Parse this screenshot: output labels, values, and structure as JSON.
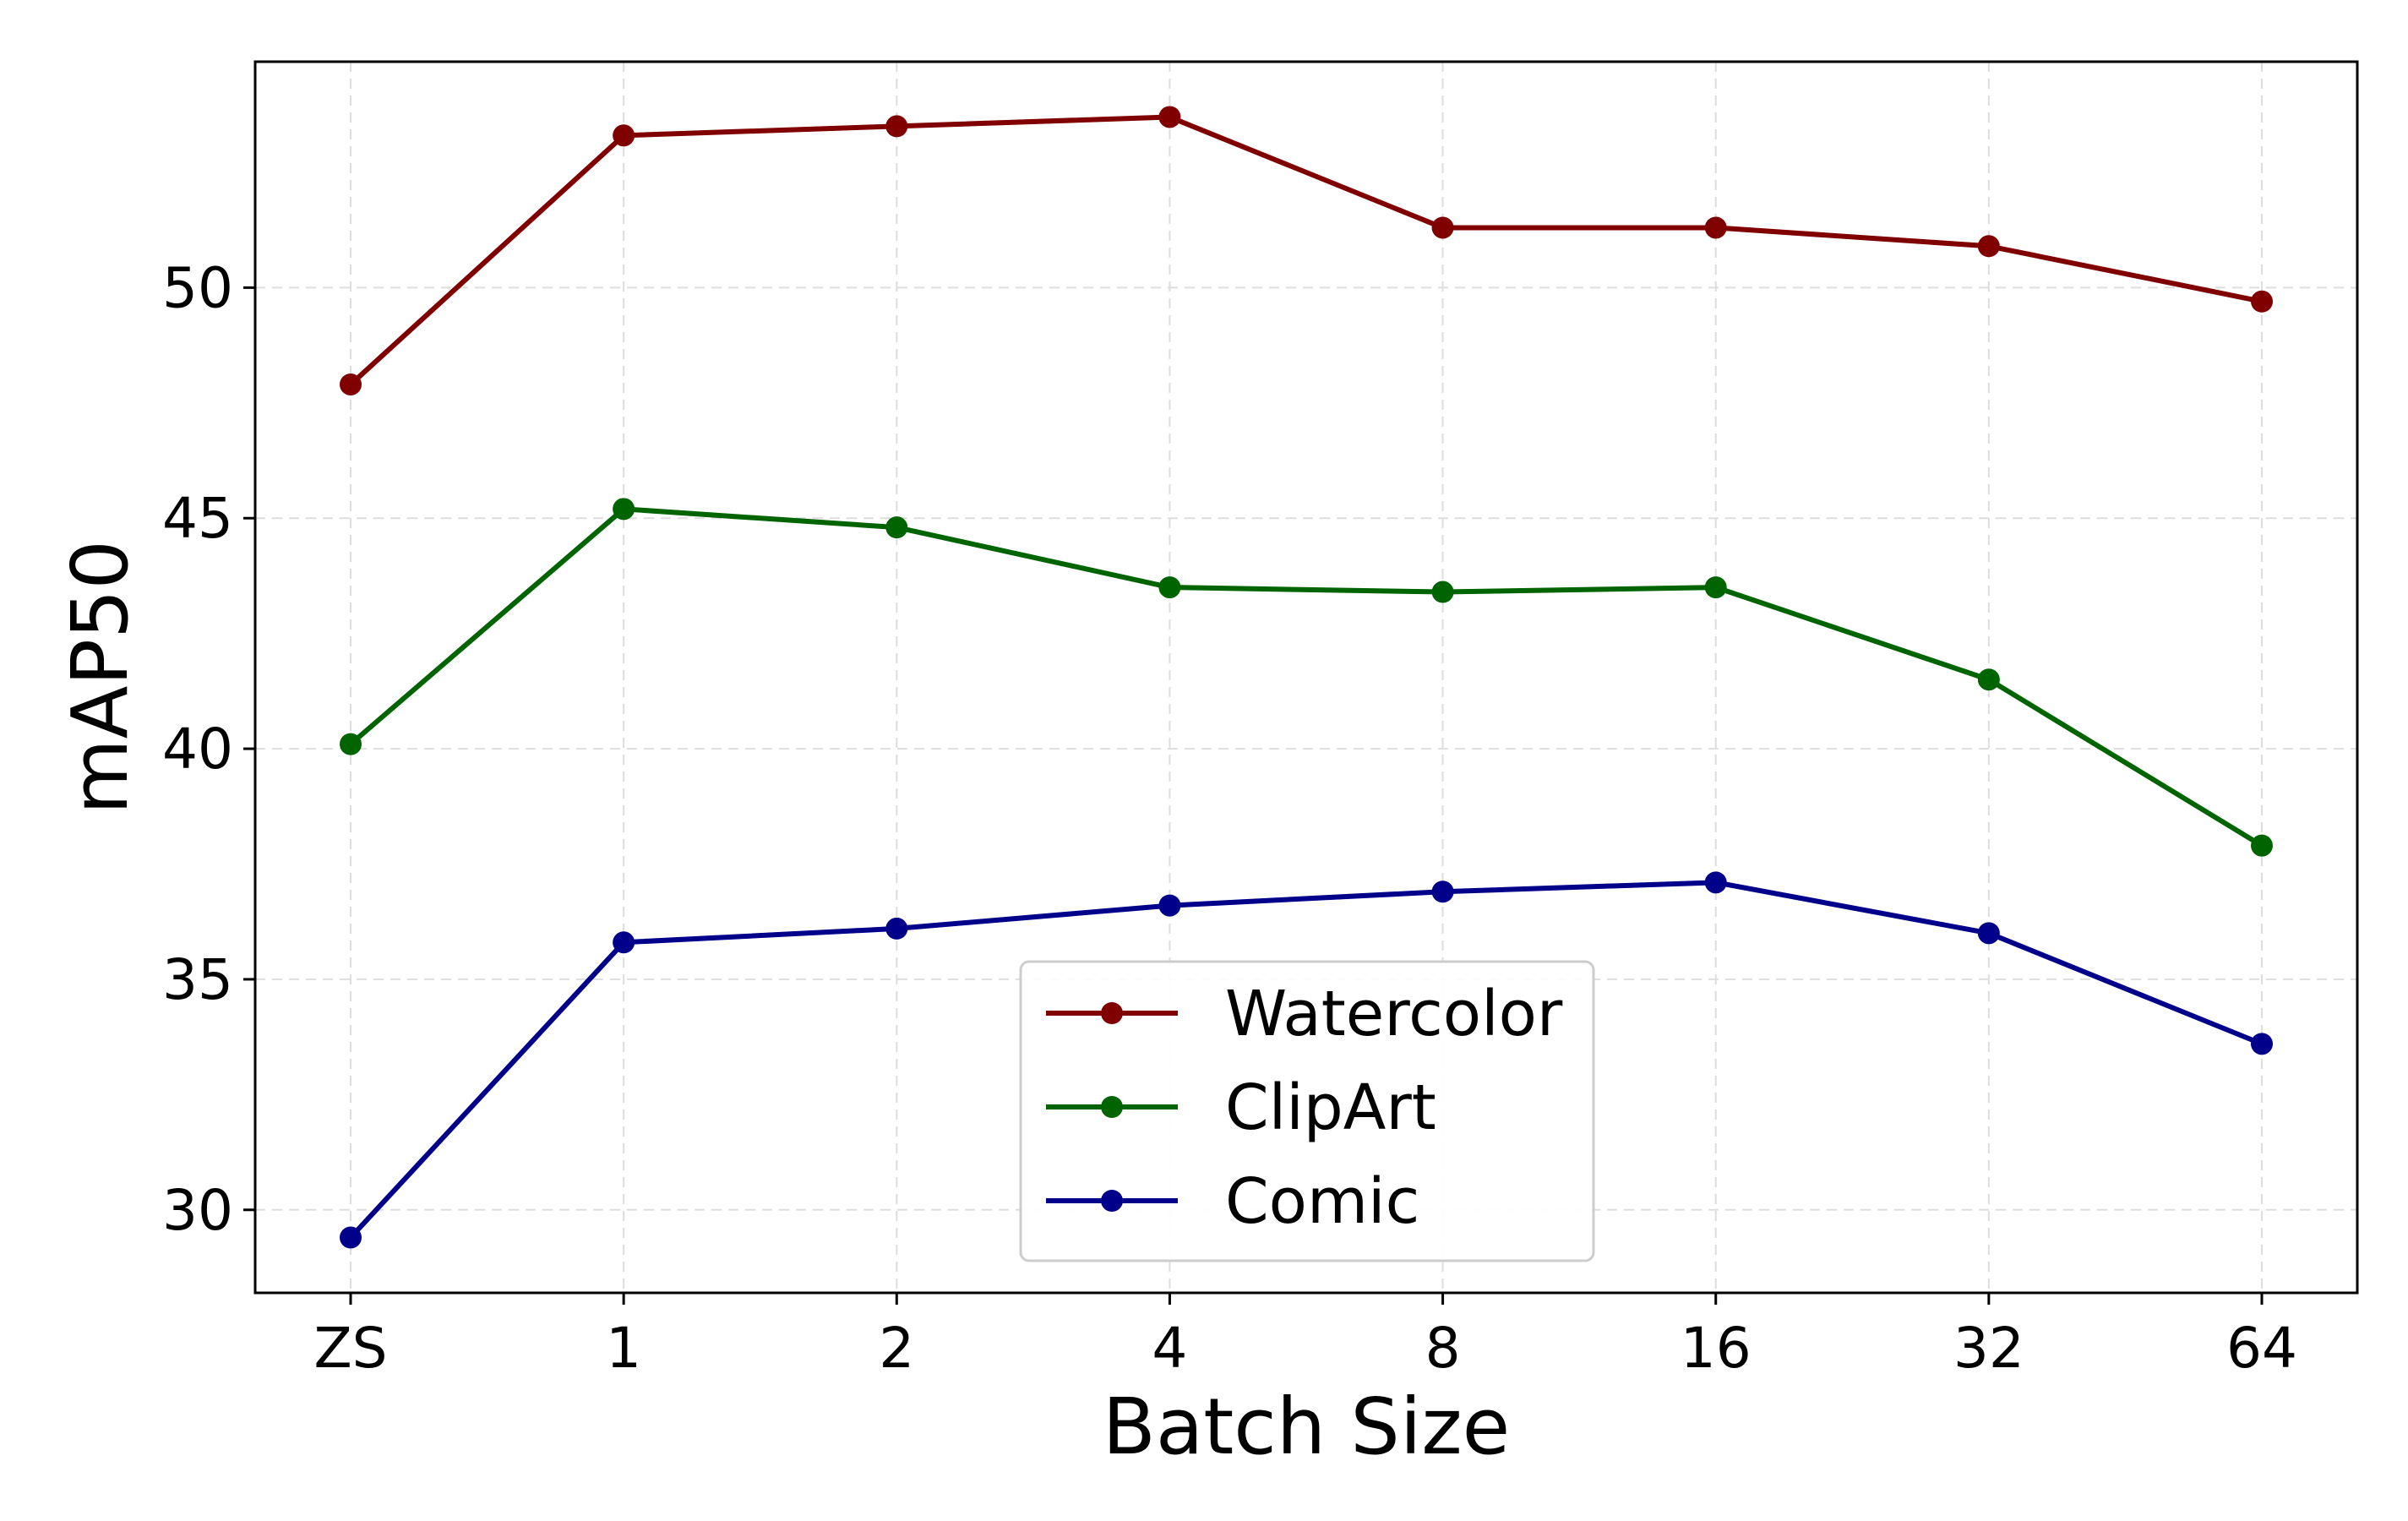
{
  "chart_data": {
    "type": "line",
    "title": "",
    "xlabel": "Batch Size",
    "ylabel": "mAP50",
    "categories": [
      "ZS",
      "1",
      "2",
      "4",
      "8",
      "16",
      "32",
      "64"
    ],
    "ylim": [
      28.2,
      54.9
    ],
    "yticks": [
      30,
      35,
      40,
      45,
      50
    ],
    "grid": true,
    "legend_position": "lower-center",
    "series": [
      {
        "name": "Watercolor",
        "color": "#800000",
        "values": [
          47.9,
          53.3,
          53.5,
          53.7,
          51.3,
          51.3,
          50.9,
          49.7
        ]
      },
      {
        "name": "ClipArt",
        "color": "#006400",
        "values": [
          40.1,
          45.2,
          44.8,
          43.5,
          43.4,
          43.5,
          41.5,
          37.9
        ]
      },
      {
        "name": "Comic",
        "color": "#00008b",
        "values": [
          29.4,
          35.8,
          36.1,
          36.6,
          36.9,
          37.1,
          36.0,
          33.6
        ]
      }
    ]
  }
}
